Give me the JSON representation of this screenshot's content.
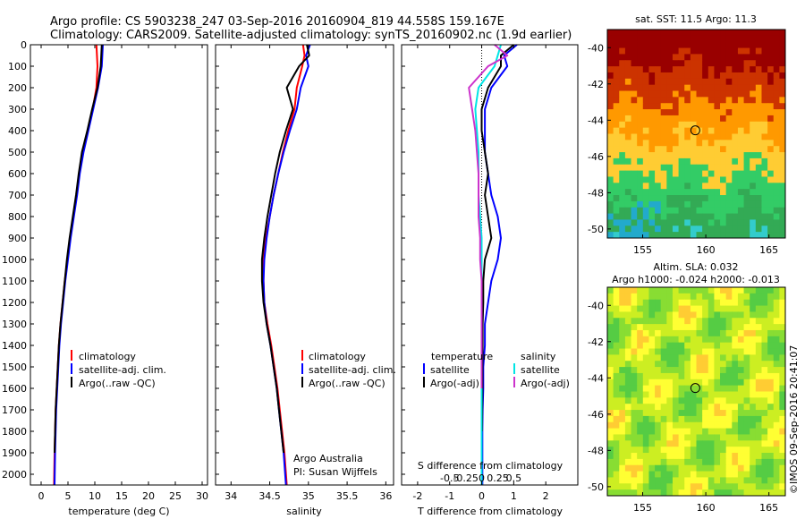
{
  "header": {
    "line1": "Argo profile: CS 5903238_247 03-Sep-2016 20160904_819 44.558S 159.167E",
    "line2": "Climatology: CARS2009. Satellite-adjusted climatology: synTS_20160902.nc (1.9d earlier)"
  },
  "colors": {
    "climatology": "#ff0000",
    "satellite": "#0000ff",
    "argo": "#000000",
    "salinity_satellite": "#00e5e5",
    "salinity_argo": "#cc33cc"
  },
  "footer": {
    "credit": "Argo Australia",
    "pi": "PI: Susan Wijffels",
    "stamp": "©IMOS 09-Sep-2016 20:41:07"
  },
  "chart_data": [
    {
      "type": "line",
      "xlabel": "temperature (deg C)",
      "xlim": [
        -2,
        31
      ],
      "ylim": [
        0,
        2050
      ],
      "y_inverted": true,
      "xticks": [
        0,
        5,
        10,
        15,
        20,
        25,
        30
      ],
      "yticks": [
        0,
        100,
        200,
        300,
        400,
        500,
        600,
        700,
        800,
        900,
        1000,
        1100,
        1200,
        1300,
        1400,
        1500,
        1600,
        1700,
        1800,
        1900,
        2000
      ],
      "legend": {
        "position": "bottom-right",
        "entries": [
          "climatology",
          "satellite-adj. clim.",
          "Argo(..raw -QC)"
        ]
      },
      "series": [
        {
          "name": "climatology",
          "color": "#ff0000",
          "x": [
            10.3,
            10.4,
            10.5,
            10.3,
            9.6,
            8.7,
            7.8,
            7.1,
            6.6,
            6.0,
            5.4,
            4.9,
            4.4,
            4.0,
            3.6,
            3.3,
            3.1,
            2.9,
            2.7,
            2.6,
            2.5,
            2.4
          ],
          "y": [
            0,
            50,
            100,
            200,
            300,
            400,
            500,
            600,
            700,
            800,
            900,
            1000,
            1100,
            1200,
            1300,
            1400,
            1500,
            1600,
            1700,
            1800,
            1900,
            2050
          ]
        },
        {
          "name": "satellite-adj. clim.",
          "color": "#0000ff",
          "x": [
            11.5,
            11.4,
            11.3,
            10.6,
            9.7,
            8.8,
            7.9,
            7.2,
            6.7,
            6.1,
            5.5,
            5.0,
            4.5,
            4.1,
            3.7,
            3.4,
            3.2,
            3.0,
            2.8,
            2.7,
            2.6,
            2.5
          ],
          "y": [
            0,
            50,
            100,
            200,
            300,
            400,
            500,
            600,
            700,
            800,
            900,
            1000,
            1100,
            1200,
            1300,
            1400,
            1500,
            1600,
            1700,
            1800,
            1900,
            2050
          ]
        },
        {
          "name": "Argo(..raw -QC)",
          "color": "#000000",
          "x": [
            11.3,
            11.2,
            11.1,
            10.5,
            9.5,
            8.6,
            7.6,
            7.0,
            6.5,
            5.9,
            5.3,
            4.8,
            4.4,
            4.0,
            3.6,
            3.3,
            3.1,
            2.9,
            2.7,
            2.6,
            2.5
          ],
          "y": [
            0,
            50,
            100,
            200,
            300,
            400,
            500,
            600,
            700,
            800,
            900,
            1000,
            1100,
            1200,
            1300,
            1400,
            1500,
            1600,
            1700,
            1800,
            1900
          ]
        }
      ]
    },
    {
      "type": "line",
      "xlabel": "salinity",
      "xlim": [
        33.8,
        36.1
      ],
      "ylim": [
        0,
        2050
      ],
      "y_inverted": true,
      "xticks": [
        34,
        34.5,
        35,
        35.5,
        36
      ],
      "legend": {
        "position": "bottom-right",
        "entries": [
          "climatology",
          "satellite-adj. clim.",
          "Argo(..raw -QC)"
        ]
      },
      "series": [
        {
          "name": "climatology",
          "color": "#ff0000",
          "x": [
            34.93,
            34.95,
            34.92,
            34.85,
            34.82,
            34.74,
            34.67,
            34.61,
            34.55,
            34.5,
            34.45,
            34.42,
            34.42,
            34.43,
            34.47,
            34.52,
            34.56,
            34.6,
            34.63,
            34.66,
            34.69,
            34.72
          ],
          "y": [
            0,
            50,
            100,
            200,
            300,
            400,
            500,
            600,
            700,
            800,
            900,
            1000,
            1100,
            1200,
            1300,
            1400,
            1500,
            1600,
            1700,
            1800,
            1900,
            2050
          ]
        },
        {
          "name": "satellite-adj. clim.",
          "color": "#0000ff",
          "x": [
            35.02,
            34.97,
            35.0,
            34.9,
            34.85,
            34.76,
            34.68,
            34.61,
            34.55,
            34.5,
            34.46,
            34.43,
            34.42,
            34.43,
            34.46,
            34.51,
            34.55,
            34.59,
            34.62,
            34.65,
            34.68,
            34.71
          ],
          "y": [
            0,
            50,
            100,
            200,
            300,
            400,
            500,
            600,
            700,
            800,
            900,
            1000,
            1100,
            1200,
            1300,
            1400,
            1500,
            1600,
            1700,
            1800,
            1900,
            2050
          ]
        },
        {
          "name": "Argo(..raw -QC)",
          "color": "#000000",
          "x": [
            34.98,
            35.01,
            34.88,
            34.72,
            34.8,
            34.71,
            34.63,
            34.57,
            34.52,
            34.47,
            34.43,
            34.4,
            34.4,
            34.42,
            34.46,
            34.51,
            34.55,
            34.59,
            34.62,
            34.65,
            34.68
          ],
          "y": [
            0,
            50,
            100,
            200,
            300,
            400,
            500,
            600,
            700,
            800,
            900,
            1000,
            1100,
            1200,
            1300,
            1400,
            1500,
            1600,
            1700,
            1800,
            1900
          ]
        }
      ]
    },
    {
      "type": "line",
      "xlabel": "T difference from climatology",
      "xlabel_top": "S difference from climatology",
      "xlim": [
        -2.5,
        3.0
      ],
      "ylim": [
        0,
        2050
      ],
      "y_inverted": true,
      "xticks": [
        -2,
        -1,
        0,
        1,
        2
      ],
      "xtick_labels": [
        "-2",
        "-1",
        "0",
        "1",
        "2"
      ],
      "xticks_s": [
        -1,
        -0.5,
        0,
        0.5,
        1
      ],
      "xtick_labels_s": [
        "-0.5",
        "-0.25",
        "0",
        "0.25",
        "0.5"
      ],
      "legend": {
        "position": "bottom",
        "headers": [
          "temperature",
          "salinity"
        ],
        "entries_t": [
          "satellite",
          "Argo(-adj)"
        ],
        "entries_s": [
          "satellite",
          "Argo(-adj)"
        ]
      },
      "series": [
        {
          "name": "temperature satellite",
          "color": "#0000ff",
          "x": [
            1.1,
            0.7,
            0.8,
            0.3,
            0.1,
            0.1,
            0.1,
            0.2,
            0.3,
            0.5,
            0.6,
            0.5,
            0.3,
            0.2,
            0.1,
            0.1,
            0.05,
            0.05,
            0.03,
            0.02,
            0.02
          ],
          "y": [
            0,
            50,
            100,
            200,
            300,
            400,
            500,
            600,
            700,
            800,
            900,
            1000,
            1100,
            1200,
            1300,
            1400,
            1500,
            1600,
            1700,
            1800,
            2050
          ]
        },
        {
          "name": "temperature Argo(-adj)",
          "color": "#000000",
          "x": [
            1.0,
            0.6,
            0.6,
            0.2,
            0.0,
            0.0,
            0.1,
            0.2,
            0.1,
            0.2,
            0.3,
            0.1,
            0.05,
            0.05,
            0.03,
            0.03,
            0.02,
            0.02,
            0.01
          ],
          "y": [
            0,
            50,
            100,
            200,
            300,
            400,
            500,
            600,
            700,
            800,
            900,
            1000,
            1100,
            1200,
            1300,
            1400,
            1500,
            1600,
            1800
          ]
        },
        {
          "name": "salinity satellite",
          "color": "#00e5e5",
          "x": [
            0.6,
            0.5,
            0.4,
            -0.1,
            -0.2,
            -0.15,
            -0.1,
            -0.1,
            -0.1,
            -0.05,
            0.0,
            0.0,
            0.0,
            0.0,
            0.0,
            0.0,
            0.0,
            0.0,
            0.0,
            0.0
          ],
          "y": [
            0,
            50,
            100,
            200,
            300,
            400,
            500,
            600,
            700,
            800,
            900,
            1000,
            1100,
            1200,
            1300,
            1400,
            1500,
            1600,
            1800,
            2050
          ]
        },
        {
          "name": "salinity Argo(-adj)",
          "color": "#cc33cc",
          "x": [
            0.4,
            0.8,
            0.2,
            -0.4,
            -0.3,
            -0.2,
            -0.15,
            -0.1,
            -0.1,
            -0.1,
            -0.05,
            -0.05,
            0.0,
            0.0,
            0.0,
            0.0,
            0.0,
            0.0
          ],
          "y": [
            0,
            50,
            100,
            200,
            300,
            400,
            500,
            600,
            700,
            800,
            900,
            1000,
            1100,
            1200,
            1300,
            1400,
            1500,
            1600
          ]
        }
      ]
    },
    {
      "type": "heatmap",
      "title": "sat. SST: 11.5 Argo: 11.3",
      "xlim": [
        152.2,
        166.3
      ],
      "ylim": [
        -50.5,
        -39.0
      ],
      "xticks": [
        155,
        160,
        165
      ],
      "yticks": [
        -40,
        -42,
        -44,
        -46,
        -48,
        -50
      ],
      "marker": {
        "lon": 159.17,
        "lat": -44.56
      },
      "palette": [
        "#990000",
        "#cc3300",
        "#ff9900",
        "#ffcc33",
        "#33cc66",
        "#33aa55",
        "#33cccc",
        "#22aacc"
      ]
    },
    {
      "type": "heatmap",
      "title": "Altim. SLA: 0.032",
      "subtitle": "Argo h1000: -0.024 h2000: -0.013",
      "xlim": [
        152.2,
        166.3
      ],
      "ylim": [
        -50.5,
        -39.0
      ],
      "xticks": [
        155,
        160,
        165
      ],
      "yticks": [
        -40,
        -42,
        -44,
        -46,
        -48,
        -50
      ],
      "marker": {
        "lon": 159.17,
        "lat": -44.56
      },
      "palette": [
        "#55cc44",
        "#88dd33",
        "#ccee22",
        "#ffff33",
        "#ffcc33",
        "#33bb77"
      ]
    }
  ]
}
